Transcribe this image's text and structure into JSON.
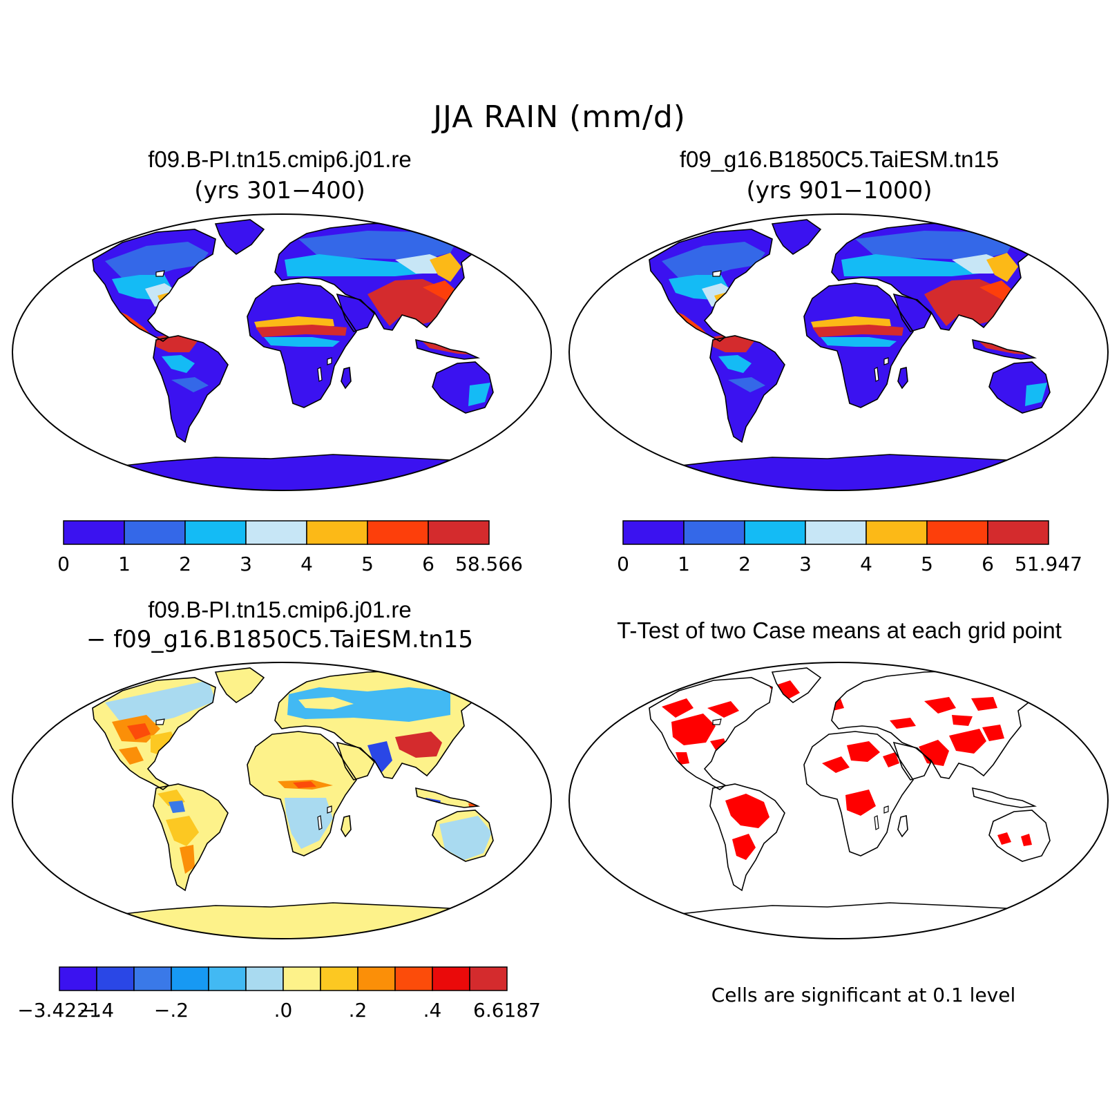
{
  "figure": {
    "title": "JJA RAIN (mm/d)"
  },
  "panels": {
    "top_left": {
      "title": "f09.B-PI.tn15.cmip6.j01.re",
      "subtitle": "(yrs 301−400)",
      "colorbar": {
        "colors": [
          "#3b12f0",
          "#3468e8",
          "#14bbf5",
          "#c7e6f6",
          "#fcb917",
          "#fd3f0b",
          "#d42b2d"
        ],
        "labels": [
          "0",
          "1",
          "2",
          "3",
          "4",
          "5",
          "6",
          "58.566"
        ]
      }
    },
    "top_right": {
      "title": "f09_g16.B1850C5.TaiESM.tn15",
      "subtitle": "(yrs 901−1000)",
      "colorbar": {
        "colors": [
          "#3b12f0",
          "#3468e8",
          "#14bbf5",
          "#c7e6f6",
          "#fcb917",
          "#fd3f0b",
          "#d42b2d"
        ],
        "labels": [
          "0",
          "1",
          "2",
          "3",
          "4",
          "5",
          "6",
          "51.947"
        ]
      }
    },
    "bottom_left": {
      "title": "f09.B-PI.tn15.cmip6.j01.re",
      "subtitle": "− f09_g16.B1850C5.TaiESM.tn15",
      "colorbar": {
        "colors": [
          "#3b12f0",
          "#2a47e6",
          "#3a79e8",
          "#1799f3",
          "#42b9f3",
          "#a9daf0",
          "#fdf28a",
          "#fcc822",
          "#fb8f08",
          "#fc4c0a",
          "#ea0a0a",
          "#d42b2d"
        ],
        "labels": [
          {
            "text": "−3.4221",
            "boundary": 0
          },
          {
            "text": "−.4",
            "boundary": 1
          },
          {
            "text": "−.2",
            "boundary": 3
          },
          {
            "text": ".0",
            "boundary": 6
          },
          {
            "text": ".2",
            "boundary": 8
          },
          {
            "text": ".4",
            "boundary": 10
          },
          {
            "text": "6.6187",
            "boundary": 12
          }
        ]
      }
    },
    "bottom_right": {
      "title": "T-Test of two Case means at each grid point",
      "note": "Cells are significant at 0.1 level",
      "highlight_color": "#ff0000"
    }
  }
}
